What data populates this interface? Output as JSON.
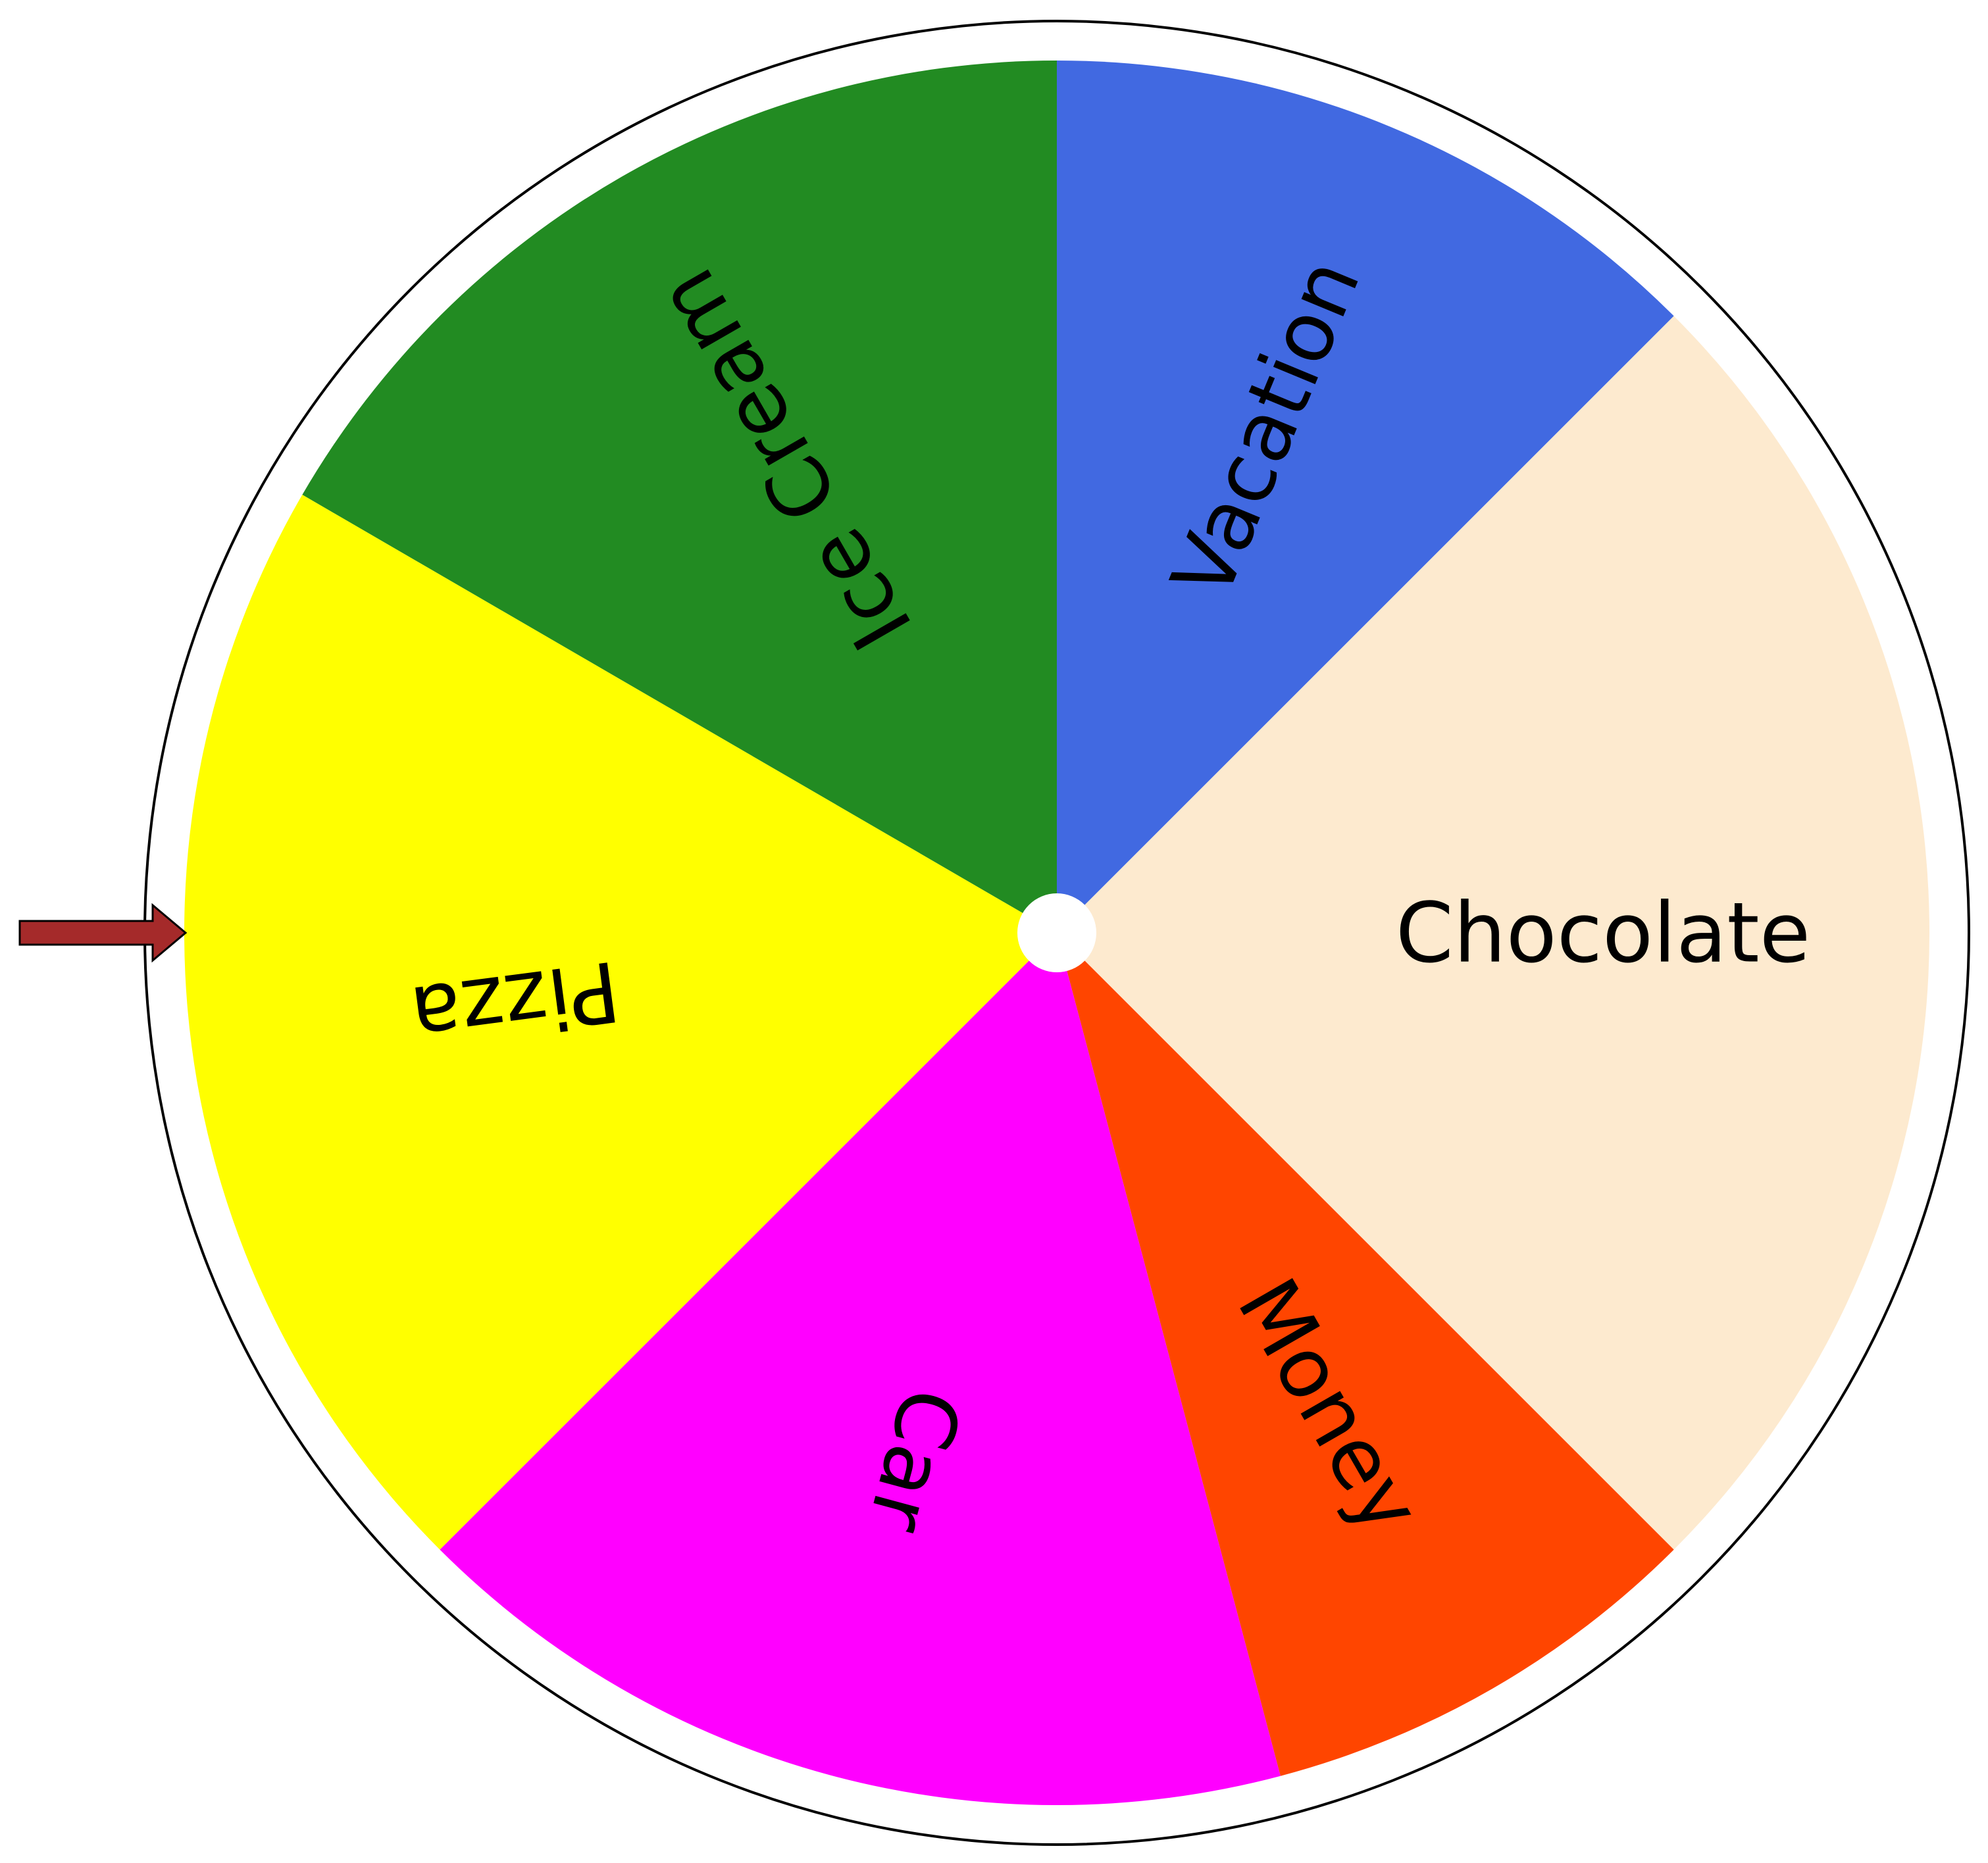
{
  "wheel": {
    "segments": [
      {
        "label": "Vacation",
        "color": "#4169E1",
        "weight": 1.0
      },
      {
        "label": "Chocolate",
        "color": "#FDEACF",
        "weight": 2.0
      },
      {
        "label": "Money",
        "color": "#FF4500",
        "weight": 0.67
      },
      {
        "label": "Car",
        "color": "#FF00FF",
        "weight": 1.33
      },
      {
        "label": "Pizza",
        "color": "#FFFF00",
        "weight": 1.67
      },
      {
        "label": "Ice Cream",
        "color": "#228B22",
        "weight": 1.33
      }
    ],
    "outer_ring_color": "#FFFFFF",
    "outer_border_color": "#000000",
    "hub_color": "#FFFFFF"
  },
  "pointer": {
    "icon": "arrow-right-icon",
    "color": "#A52A2A",
    "points_to": "Pizza"
  }
}
